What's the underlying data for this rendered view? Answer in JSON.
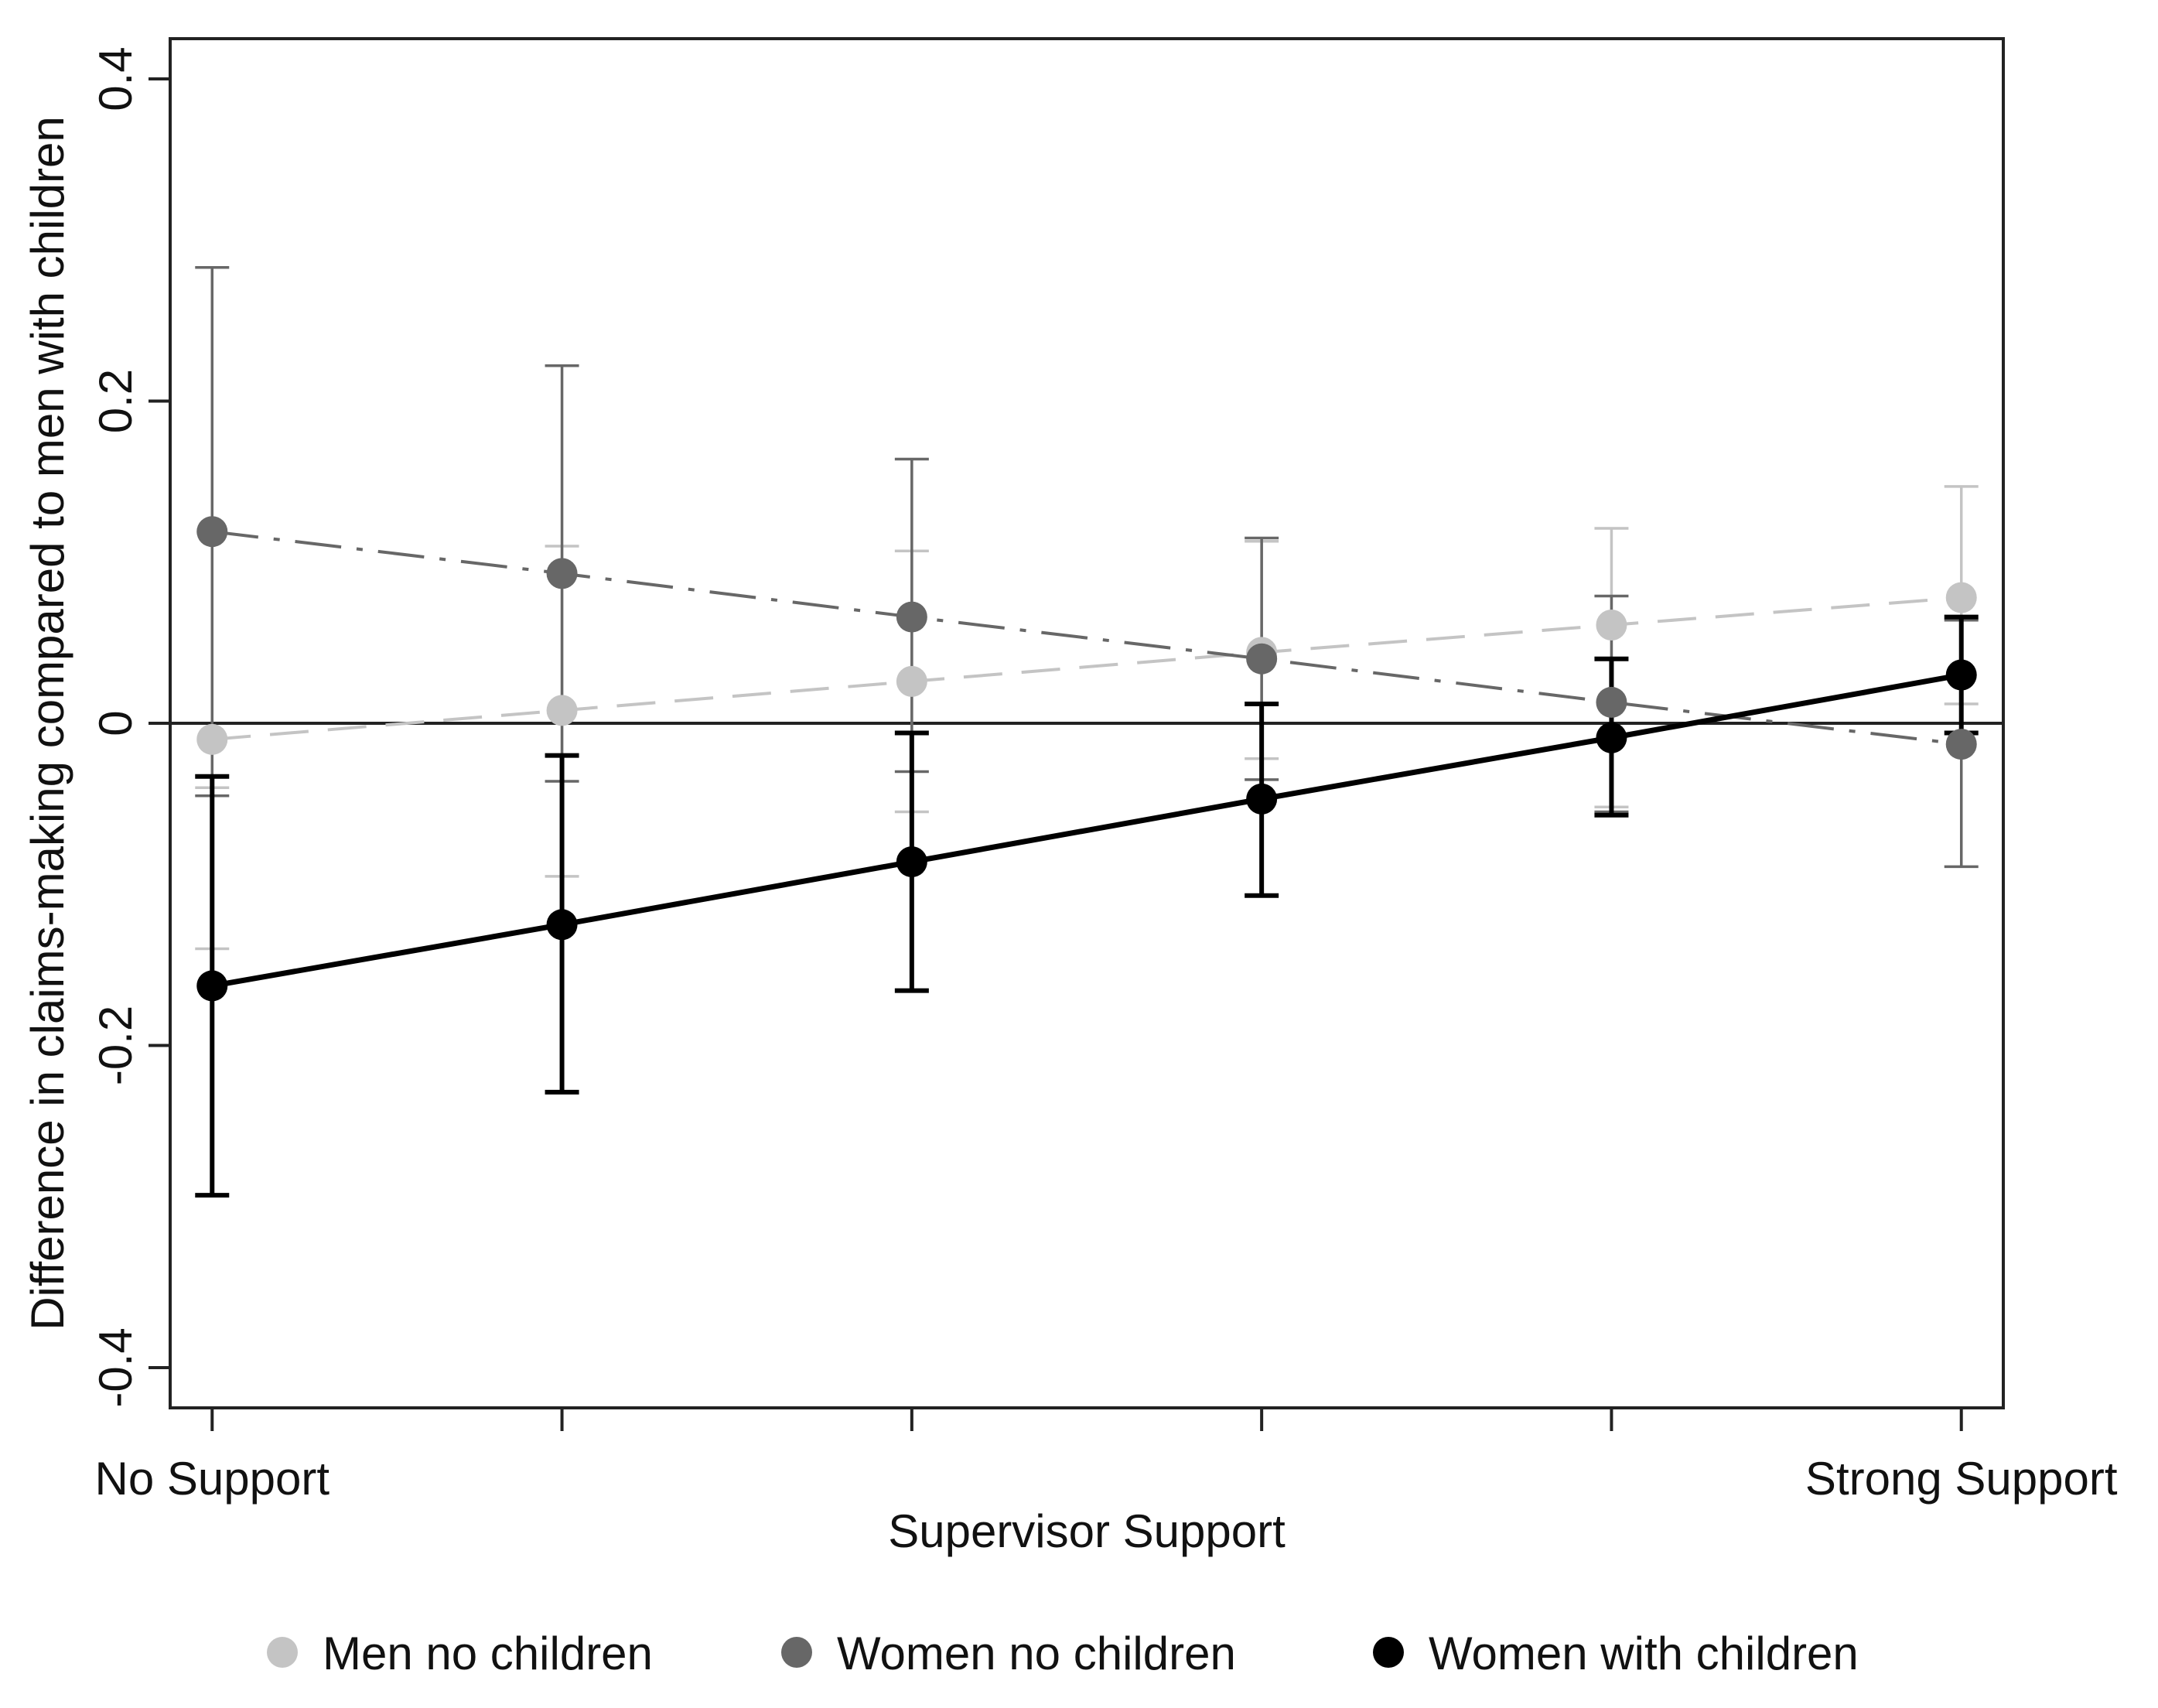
{
  "chart_data": {
    "type": "line",
    "title": "",
    "xlabel": "Supervisor Support",
    "ylabel": "Difference in claims-making compared to men with children",
    "x": [
      0,
      1,
      2,
      3,
      4,
      5
    ],
    "xlim": [
      -0.12,
      5.12
    ],
    "x_tick_labels": [
      {
        "x": 0,
        "label": "No Support"
      },
      {
        "x": 5,
        "label": "Strong Support"
      }
    ],
    "ylim": [
      -0.425,
      0.425
    ],
    "y_ticks": [
      {
        "value": -0.4,
        "label": "-0.4"
      },
      {
        "value": -0.2,
        "label": "-0.2"
      },
      {
        "value": 0,
        "label": "0"
      },
      {
        "value": 0.2,
        "label": "0.2"
      },
      {
        "value": 0.4,
        "label": "0.4"
      }
    ],
    "reference_line": 0,
    "grid": false,
    "legend_position": "bottom",
    "series": [
      {
        "name": "Men no children",
        "color": "#c4c4c4",
        "line_style": "dashed",
        "values": [
          -0.01,
          0.008,
          0.026,
          0.044,
          0.061,
          0.078
        ],
        "ci_low": [
          -0.14,
          -0.095,
          -0.055,
          -0.022,
          -0.052,
          0.012
        ],
        "ci_high": [
          -0.04,
          0.11,
          0.107,
          0.113,
          0.121,
          0.147
        ]
      },
      {
        "name": "Women no children",
        "color": "#676767",
        "line_style": "dashdot",
        "values": [
          0.119,
          0.093,
          0.066,
          0.04,
          0.013,
          -0.013
        ],
        "ci_low": [
          -0.045,
          -0.036,
          -0.03,
          -0.035,
          -0.055,
          -0.089
        ],
        "ci_high": [
          0.283,
          0.222,
          0.164,
          0.115,
          0.079,
          0.064
        ]
      },
      {
        "name": "Women with children",
        "color": "#000000",
        "line_style": "solid",
        "values": [
          -0.163,
          -0.125,
          -0.086,
          -0.047,
          -0.009,
          0.03
        ],
        "ci_low": [
          -0.293,
          -0.229,
          -0.166,
          -0.107,
          -0.057,
          -0.006
        ],
        "ci_high": [
          -0.033,
          -0.02,
          -0.006,
          0.012,
          0.04,
          0.066
        ]
      }
    ]
  }
}
